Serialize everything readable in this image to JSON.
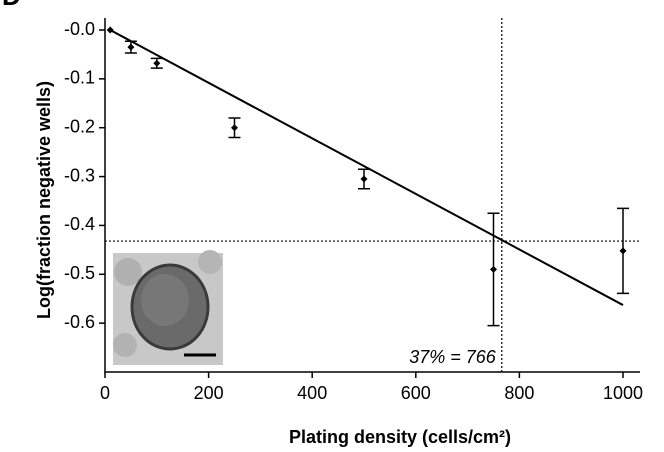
{
  "chart_data": {
    "type": "scatter",
    "panel_label": "D",
    "x_label": "Plating density (cells/cm²)",
    "y_label": "Log(fraction  negative  wells)",
    "series": [
      {
        "x": [
          10,
          50,
          100,
          250,
          500,
          750,
          1000
        ],
        "values": [
          0,
          -0.035,
          -0.068,
          -0.2,
          -0.305,
          -0.49,
          -0.452
        ],
        "errors": [
          0,
          0.012,
          0.01,
          0.02,
          0.02,
          0.115,
          0.087
        ],
        "color": "#000000"
      }
    ],
    "fit": {
      "x": [
        10,
        1000
      ],
      "values": [
        0,
        -0.563
      ],
      "color": "#000000"
    },
    "reference_x": 766,
    "reference_y": -0.432,
    "annotation": "37% = 766",
    "xlim": [
      0,
      1000
    ],
    "ylim": [
      -0.7,
      0
    ],
    "xticks": [
      0,
      200,
      400,
      600,
      800,
      1000
    ],
    "yticks": [
      {
        "value": 0,
        "label": "-0.0"
      },
      -0.1,
      -0.2,
      -0.3,
      -0.4,
      -0.5,
      -0.6
    ]
  }
}
